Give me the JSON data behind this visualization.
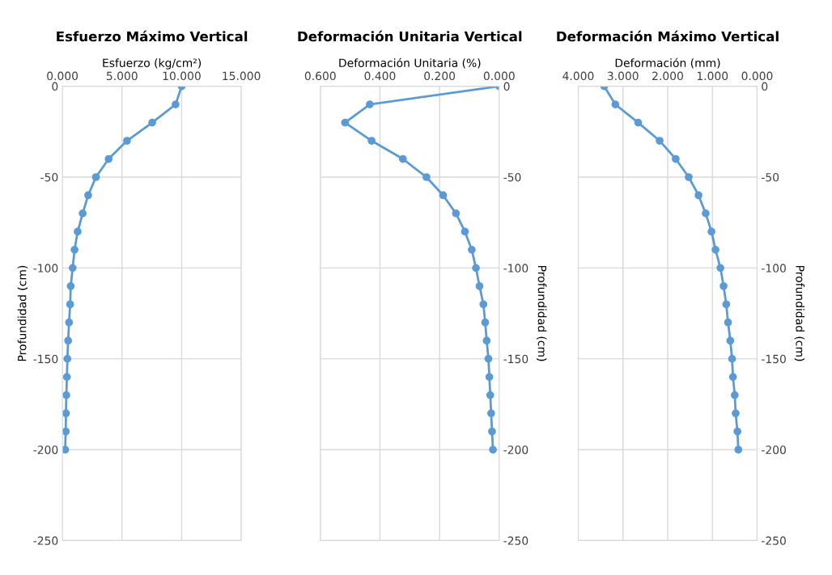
{
  "chart_data": [
    {
      "type": "line",
      "title": "Esfuerzo Máximo Vertical",
      "xlabel": "Esfuerzo (kg/cm²)",
      "ylabel": "Profundidad (cm)",
      "xlim": [
        0,
        15
      ],
      "xticks": [
        {
          "value": 0,
          "label": "0.000"
        },
        {
          "value": 5,
          "label": "5.000"
        },
        {
          "value": 10,
          "label": "10.000"
        },
        {
          "value": 15,
          "label": "15.000"
        }
      ],
      "ylim": [
        -250,
        0
      ],
      "yticks": [
        0,
        -50,
        -100,
        -150,
        -200,
        -250
      ],
      "grid": true,
      "marker": "circle",
      "line_style": "solid",
      "series": [
        {
          "color": "#5b9bd5",
          "x": [
            10.0,
            9.49,
            7.53,
            5.42,
            3.88,
            2.81,
            2.16,
            1.7,
            1.28,
            1.02,
            0.86,
            0.7,
            0.65,
            0.56,
            0.48,
            0.42,
            0.38,
            0.33,
            0.3,
            0.28,
            0.23
          ],
          "values": [
            0,
            -10,
            -20,
            -30,
            -40,
            -50,
            -60,
            -70,
            -80,
            -90,
            -100,
            -110,
            -120,
            -130,
            -140,
            -150,
            -160,
            -170,
            -180,
            -190,
            -200
          ]
        }
      ]
    },
    {
      "type": "line",
      "title": "Deformación Unitaria Vertical",
      "xlabel": "Deformación Unitaria (%)",
      "ylabel": "Profundidad (cm)",
      "xlim": [
        0.6,
        0
      ],
      "xticks": [
        {
          "value": 0.6,
          "label": "0.600"
        },
        {
          "value": 0.4,
          "label": "0.400"
        },
        {
          "value": 0.2,
          "label": "0.200"
        },
        {
          "value": 0,
          "label": "0.000"
        }
      ],
      "ylim": [
        -250,
        0
      ],
      "yticks": [
        0,
        -50,
        -100,
        -150,
        -200,
        -250
      ],
      "grid": true,
      "marker": "circle",
      "line_style": "solid",
      "series": [
        {
          "color": "#5b9bd5",
          "x": [
            0,
            0.434,
            0.517,
            0.428,
            0.323,
            0.244,
            0.188,
            0.145,
            0.115,
            0.092,
            0.078,
            0.066,
            0.053,
            0.047,
            0.042,
            0.036,
            0.033,
            0.03,
            0.027,
            0.024,
            0.021
          ],
          "values": [
            0,
            -10,
            -20,
            -30,
            -40,
            -50,
            -60,
            -70,
            -80,
            -90,
            -100,
            -110,
            -120,
            -130,
            -140,
            -150,
            -160,
            -170,
            -180,
            -190,
            -200
          ]
        }
      ]
    },
    {
      "type": "line",
      "title": "Deformación Máximo Vertical",
      "xlabel": "Deformación (mm)",
      "ylabel": "Profundidad (cm)",
      "xlim": [
        4,
        0
      ],
      "xticks": [
        {
          "value": 4,
          "label": "4.000"
        },
        {
          "value": 3,
          "label": "3.000"
        },
        {
          "value": 2,
          "label": "2.000"
        },
        {
          "value": 1,
          "label": "1.000"
        },
        {
          "value": 0,
          "label": "0.000"
        }
      ],
      "ylim": [
        -250,
        0
      ],
      "yticks": [
        0,
        -50,
        -100,
        -150,
        -200,
        -250
      ],
      "grid": true,
      "marker": "circle",
      "line_style": "solid",
      "series": [
        {
          "color": "#5b9bd5",
          "x": [
            3.42,
            3.17,
            2.66,
            2.18,
            1.82,
            1.53,
            1.31,
            1.15,
            1.02,
            0.93,
            0.82,
            0.75,
            0.69,
            0.65,
            0.6,
            0.56,
            0.54,
            0.5,
            0.48,
            0.44,
            0.42
          ],
          "values": [
            0,
            -10,
            -20,
            -30,
            -40,
            -50,
            -60,
            -70,
            -80,
            -90,
            -100,
            -110,
            -120,
            -130,
            -140,
            -150,
            -160,
            -170,
            -180,
            -190,
            -200
          ]
        }
      ]
    }
  ]
}
